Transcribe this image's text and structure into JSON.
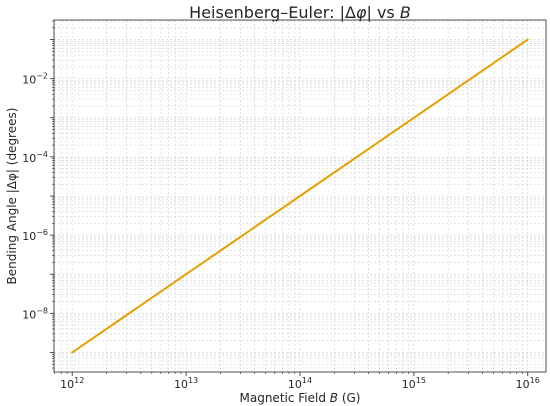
{
  "chart_data": {
    "type": "line",
    "title": "Heisenberg–Euler: |Δφ| vs B",
    "title_parts": [
      "Heisenberg–Euler: |Δ",
      "φ",
      "| vs ",
      "B"
    ],
    "xlabel": "Magnetic Field B (G)",
    "xlabel_parts": [
      "Magnetic Field ",
      "B",
      " (G)"
    ],
    "ylabel": "Bending Angle |Δφ| (degrees)",
    "x_scale": "log",
    "y_scale": "log",
    "x_tick_labels": [
      {
        "base": "10",
        "exp": "12"
      },
      {
        "base": "10",
        "exp": "13"
      },
      {
        "base": "10",
        "exp": "14"
      },
      {
        "base": "10",
        "exp": "15"
      },
      {
        "base": "10",
        "exp": "16"
      }
    ],
    "y_tick_labels": [
      {
        "base": "10",
        "exp": "−8"
      },
      {
        "base": "10",
        "exp": "−6"
      },
      {
        "base": "10",
        "exp": "−4"
      },
      {
        "base": "10",
        "exp": "−2"
      }
    ],
    "grid": true,
    "series": [
      {
        "color": "#e69f00",
        "x": [
          1000000000000.0,
          10000000000000.0,
          100000000000000.0,
          1000000000000000.0,
          1e+16
        ],
        "y": [
          1e-09,
          1e-07,
          1e-05,
          0.001,
          0.1
        ]
      }
    ]
  }
}
